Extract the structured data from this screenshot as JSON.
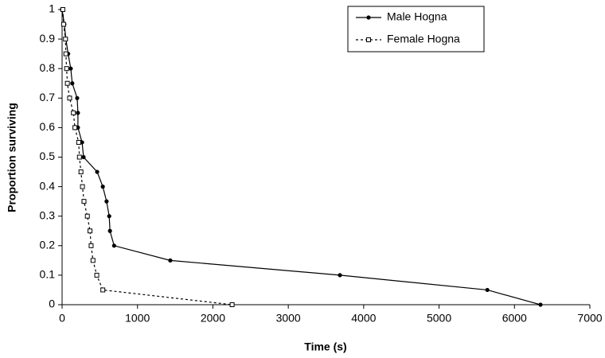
{
  "chart_data": {
    "type": "line",
    "xlabel": "Time (s)",
    "ylabel": "Proportion surviving",
    "xlim": [
      0,
      7000
    ],
    "xticks": [
      0,
      1000,
      2000,
      3000,
      4000,
      5000,
      6000,
      7000
    ],
    "ylim": [
      0,
      1
    ],
    "yticks": [
      0,
      0.1,
      0.2,
      0.3,
      0.4,
      0.5,
      0.6,
      0.7,
      0.8,
      0.9,
      1
    ],
    "legend": "top-right",
    "series": [
      {
        "name": "Male Hogna",
        "color": "#000000",
        "marker": "circle",
        "dash": false,
        "x": [
          0,
          30,
          50,
          80,
          115,
          135,
          200,
          210,
          210,
          265,
          285,
          465,
          540,
          590,
          625,
          635,
          690,
          1435,
          3685,
          5640,
          6345
        ],
        "y": [
          1,
          0.95,
          0.9,
          0.85,
          0.8,
          0.75,
          0.7,
          0.65,
          0.6,
          0.55,
          0.5,
          0.45,
          0.4,
          0.35,
          0.3,
          0.25,
          0.2,
          0.15,
          0.1,
          0.05,
          0
        ]
      },
      {
        "name": "Female Hogna",
        "color": "#000000",
        "marker": "square",
        "dash": true,
        "x": [
          10,
          20,
          45,
          50,
          60,
          70,
          100,
          150,
          170,
          220,
          230,
          250,
          270,
          290,
          335,
          370,
          385,
          410,
          460,
          540,
          2255
        ],
        "y": [
          1,
          0.95,
          0.9,
          0.85,
          0.8,
          0.75,
          0.7,
          0.65,
          0.6,
          0.55,
          0.5,
          0.45,
          0.4,
          0.35,
          0.3,
          0.25,
          0.2,
          0.15,
          0.1,
          0.05,
          0
        ]
      }
    ]
  }
}
